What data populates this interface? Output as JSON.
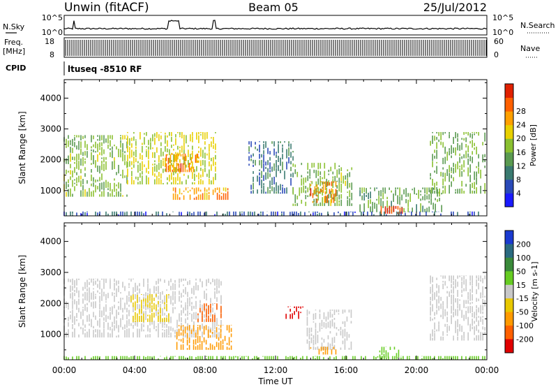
{
  "header": {
    "station": "Unwin (fitACF)",
    "beam": "Beam 05",
    "date": "25/Jul/2012"
  },
  "top_panels": {
    "nsky_label": "N.Sky",
    "nsearch_label": "N.Search",
    "nsky_ticks": [
      "10^5",
      "10^0"
    ],
    "nsearch_ticks": [
      "10^5",
      "10^0"
    ],
    "freq_label_1": "Freq.",
    "freq_label_2": "[MHz]",
    "freq_ticks": [
      "18",
      "8"
    ],
    "nave_label": "Nave",
    "nave_ticks": [
      "60",
      "0"
    ],
    "cpid_label": "CPID",
    "cpid_value": "ltuseq -8510 RF"
  },
  "colors": {
    "power_scale": [
      "#1a1aff",
      "#2a4ab8",
      "#3a7a70",
      "#5a9a50",
      "#8ac030",
      "#e8d000",
      "#ffa000",
      "#ff6000",
      "#e02000"
    ],
    "velocity_scale": [
      "#1a3ad0",
      "#2a6a80",
      "#3a8a3a",
      "#66cc22",
      "#c8c8c8",
      "#e8c800",
      "#ff9a00",
      "#ff6000",
      "#e00000"
    ]
  },
  "chart_data": [
    {
      "type": "heatmap",
      "title": "Power",
      "xlabel": "Time UT",
      "ylabel": "Slant Range [km]",
      "x_ticks": [
        "00:00",
        "04:00",
        "08:00",
        "12:00",
        "16:00",
        "20:00",
        "00:00"
      ],
      "y_ticks": [
        1000,
        2000,
        3000,
        4000
      ],
      "ylim": [
        180,
        4600
      ],
      "colorbar_label": "Power [dB]",
      "colorbar_ticks": [
        "4",
        "8",
        "12",
        "16",
        "20",
        "24",
        "28"
      ],
      "colorbar_range": [
        0,
        30
      ],
      "regions": [
        {
          "t0": 0.0,
          "t1": 3.6,
          "r0": 800,
          "r1": 2800,
          "value": 14
        },
        {
          "t0": 3.6,
          "t1": 8.6,
          "r0": 1200,
          "r1": 2900,
          "value": 17
        },
        {
          "t0": 5.8,
          "t1": 7.6,
          "r0": 1600,
          "r1": 2200,
          "value": 24
        },
        {
          "t0": 6.2,
          "t1": 9.4,
          "r0": 700,
          "r1": 1100,
          "value": 22
        },
        {
          "t0": 10.5,
          "t1": 13.0,
          "r0": 900,
          "r1": 2600,
          "value": 8
        },
        {
          "t0": 13.0,
          "t1": 16.4,
          "r0": 500,
          "r1": 1900,
          "value": 14
        },
        {
          "t0": 14.0,
          "t1": 15.5,
          "r0": 600,
          "r1": 1300,
          "value": 24
        },
        {
          "t0": 16.8,
          "t1": 21.5,
          "r0": 300,
          "r1": 1100,
          "value": 12
        },
        {
          "t0": 18.0,
          "t1": 19.2,
          "r0": 250,
          "r1": 500,
          "value": 28
        },
        {
          "t0": 20.8,
          "t1": 24.0,
          "r0": 900,
          "r1": 2900,
          "value": 13
        },
        {
          "t0": 0.0,
          "t1": 24.0,
          "r0": 180,
          "r1": 320,
          "value": 6
        }
      ]
    },
    {
      "type": "heatmap",
      "title": "Velocity",
      "xlabel": "Time UT",
      "ylabel": "Slant Range [km]",
      "x_ticks": [
        "00:00",
        "04:00",
        "08:00",
        "12:00",
        "16:00",
        "20:00",
        "00:00"
      ],
      "y_ticks": [
        1000,
        2000,
        3000,
        4000
      ],
      "ylim": [
        180,
        4600
      ],
      "colorbar_label": "Velocity [m s-1]",
      "colorbar_ticks": [
        "200",
        "100",
        "50",
        "15",
        "-15",
        "-50",
        "-100",
        "-200"
      ],
      "colorbar_range": [
        -250,
        250
      ],
      "regions": [
        {
          "t0": 0.0,
          "t1": 9.0,
          "r0": 900,
          "r1": 2800,
          "value": 0
        },
        {
          "t0": 3.8,
          "t1": 6.0,
          "r0": 1400,
          "r1": 2300,
          "value": -40
        },
        {
          "t0": 6.4,
          "t1": 9.6,
          "r0": 500,
          "r1": 1300,
          "value": -60
        },
        {
          "t0": 7.6,
          "t1": 9.0,
          "r0": 1400,
          "r1": 2000,
          "value": -120
        },
        {
          "t0": 12.6,
          "t1": 13.6,
          "r0": 1500,
          "r1": 1900,
          "value": -220
        },
        {
          "t0": 13.8,
          "t1": 16.4,
          "r0": 500,
          "r1": 1800,
          "value": 0
        },
        {
          "t0": 14.0,
          "t1": 15.5,
          "r0": 350,
          "r1": 600,
          "value": -70
        },
        {
          "t0": 17.8,
          "t1": 19.0,
          "r0": 250,
          "r1": 600,
          "value": 40
        },
        {
          "t0": 20.8,
          "t1": 24.0,
          "r0": 800,
          "r1": 2900,
          "value": 0
        },
        {
          "t0": 0.0,
          "t1": 24.0,
          "r0": 180,
          "r1": 300,
          "value": 20
        }
      ]
    }
  ]
}
